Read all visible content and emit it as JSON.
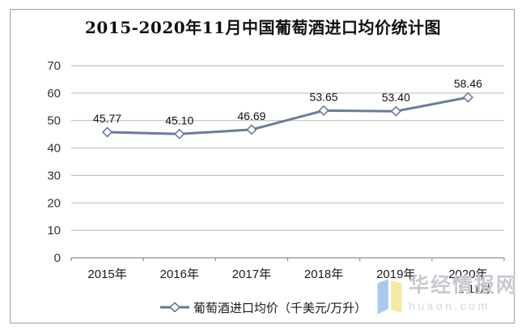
{
  "title": "2015-2020年11月中国葡萄酒进口均价统计图",
  "chart_data": {
    "type": "line",
    "title": "2015-2020年11月中国葡萄酒进口均价统计图",
    "categories": [
      "2015年",
      "2016年",
      "2017年",
      "2018年",
      "2019年",
      "2020年"
    ],
    "last_category_sublabel": "1-11月",
    "values": [
      45.77,
      45.1,
      46.69,
      53.65,
      53.4,
      58.46
    ],
    "data_labels": [
      "45.77",
      "45.10",
      "46.69",
      "53.65",
      "53.40",
      "58.46"
    ],
    "xlabel": "",
    "ylabel": "",
    "ylim": [
      0,
      70
    ],
    "yticks": [
      0,
      10,
      20,
      30,
      40,
      50,
      60,
      70
    ],
    "grid": true,
    "legend": {
      "label": "葡萄酒进口均价（千美元/万升）",
      "position": "bottom",
      "marker": "open-diamond-on-line"
    },
    "colors": {
      "line": "#6b7a9e",
      "marker_fill": "#ffffff",
      "marker_stroke": "#6b7a9e",
      "gridline": "#b9b9b9",
      "axis": "#8c8c8c",
      "tick_label": "#333333",
      "data_label": "#111111"
    }
  },
  "watermark": {
    "brand": "华经情报网",
    "domain": "huaon.com",
    "logo_blue": "#a9c9ee",
    "logo_yellow": "#f6e9a3"
  }
}
